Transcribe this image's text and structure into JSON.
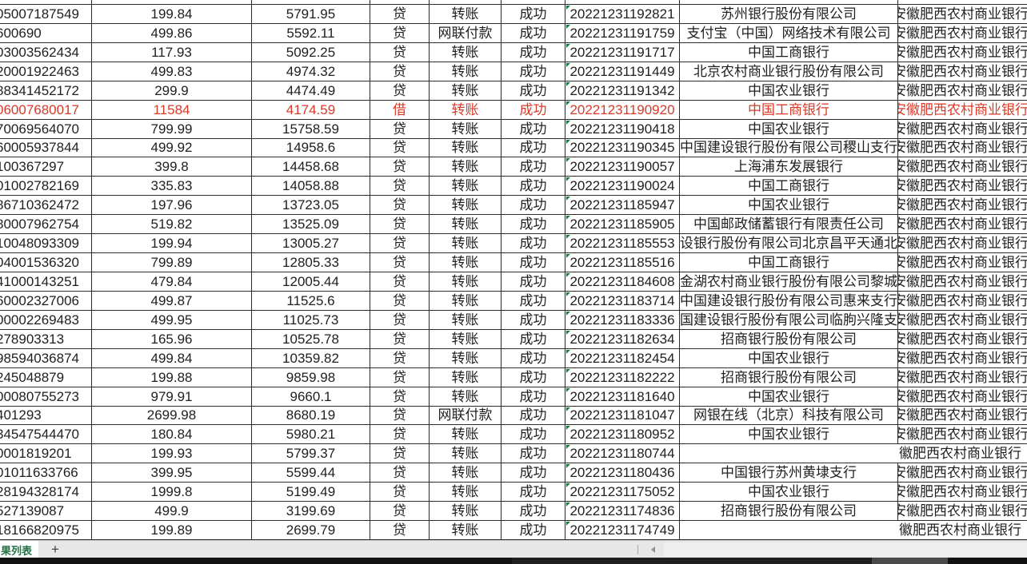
{
  "sheet_bar": {
    "active_tab": "果列表",
    "add_label": "+"
  },
  "colors": {
    "red_row_text": "#d93a28",
    "tab_green": "#217346",
    "warning_triangle_green": "#1f7a3c",
    "border": "#2b2b2b"
  },
  "table": {
    "home_bank_text": "安徽肥西农村商业银行",
    "column_keys": [
      "account",
      "amount",
      "balance",
      "debit_credit",
      "method",
      "status",
      "timestamp",
      "counterparty_bank",
      "home_bank"
    ],
    "rows": [
      {
        "account": "05007187549",
        "amount": "199.84",
        "balance": "5791.95",
        "debit_credit": "贷",
        "method": "转账",
        "status": "成功",
        "timestamp": "20221231192821",
        "counterparty_bank": "苏州银行股份有限公司",
        "red": false,
        "spill": false
      },
      {
        "account": "600690",
        "amount": "499.86",
        "balance": "5592.11",
        "debit_credit": "贷",
        "method": "网联付款",
        "status": "成功",
        "timestamp": "20221231191759",
        "counterparty_bank": "支付宝（中国）网络技术有限公司",
        "red": false,
        "spill": false
      },
      {
        "account": "03003562434",
        "amount": "117.93",
        "balance": "5092.25",
        "debit_credit": "贷",
        "method": "转账",
        "status": "成功",
        "timestamp": "20221231191717",
        "counterparty_bank": "中国工商银行",
        "red": false,
        "spill": false
      },
      {
        "account": "20001922463",
        "amount": "499.83",
        "balance": "4974.32",
        "debit_credit": "贷",
        "method": "转账",
        "status": "成功",
        "timestamp": "20221231191449",
        "counterparty_bank": "北京农村商业银行股份有限公司",
        "red": false,
        "spill": false
      },
      {
        "account": "88341452172",
        "amount": "299.9",
        "balance": "4474.49",
        "debit_credit": "贷",
        "method": "转账",
        "status": "成功",
        "timestamp": "20221231191342",
        "counterparty_bank": "中国农业银行",
        "red": false,
        "spill": false
      },
      {
        "account": "06007680017",
        "amount": "11584",
        "balance": "4174.59",
        "debit_credit": "借",
        "method": "转账",
        "status": "成功",
        "timestamp": "20221231190920",
        "counterparty_bank": "中国工商银行",
        "red": true,
        "spill": false
      },
      {
        "account": "70069564070",
        "amount": "799.99",
        "balance": "15758.59",
        "debit_credit": "贷",
        "method": "转账",
        "status": "成功",
        "timestamp": "20221231190418",
        "counterparty_bank": "中国农业银行",
        "red": false,
        "spill": false
      },
      {
        "account": "60005937844",
        "amount": "499.92",
        "balance": "14958.6",
        "debit_credit": "贷",
        "method": "转账",
        "status": "成功",
        "timestamp": "20221231190345",
        "counterparty_bank": "中国建设银行股份有限公司稷山支行",
        "red": false,
        "spill": false
      },
      {
        "account": "100367297",
        "amount": "399.8",
        "balance": "14458.68",
        "debit_credit": "贷",
        "method": "转账",
        "status": "成功",
        "timestamp": "20221231190057",
        "counterparty_bank": "上海浦东发展银行",
        "red": false,
        "spill": false
      },
      {
        "account": "01002782169",
        "amount": "335.83",
        "balance": "14058.88",
        "debit_credit": "贷",
        "method": "转账",
        "status": "成功",
        "timestamp": "20221231190024",
        "counterparty_bank": "中国工商银行",
        "red": false,
        "spill": false
      },
      {
        "account": "86710362472",
        "amount": "197.96",
        "balance": "13723.05",
        "debit_credit": "贷",
        "method": "转账",
        "status": "成功",
        "timestamp": "20221231185947",
        "counterparty_bank": "中国农业银行",
        "red": false,
        "spill": false
      },
      {
        "account": "80007962754",
        "amount": "519.82",
        "balance": "13525.09",
        "debit_credit": "贷",
        "method": "转账",
        "status": "成功",
        "timestamp": "20221231185905",
        "counterparty_bank": "中国邮政储蓄银行有限责任公司",
        "red": false,
        "spill": false
      },
      {
        "account": "10048093309",
        "amount": "199.94",
        "balance": "13005.27",
        "debit_credit": "贷",
        "method": "转账",
        "status": "成功",
        "timestamp": "20221231185553",
        "counterparty_bank": "设银行股份有限公司北京昌平天通北",
        "red": false,
        "spill": false
      },
      {
        "account": "04001536320",
        "amount": "799.89",
        "balance": "12805.33",
        "debit_credit": "贷",
        "method": "转账",
        "status": "成功",
        "timestamp": "20221231185516",
        "counterparty_bank": "中国工商银行",
        "red": false,
        "spill": false
      },
      {
        "account": "41000143251",
        "amount": "479.84",
        "balance": "12005.44",
        "debit_credit": "贷",
        "method": "转账",
        "status": "成功",
        "timestamp": "20221231184608",
        "counterparty_bank": "金湖农村商业银行股份有限公司黎城",
        "red": false,
        "spill": false
      },
      {
        "account": "60002327006",
        "amount": "499.87",
        "balance": "11525.6",
        "debit_credit": "贷",
        "method": "转账",
        "status": "成功",
        "timestamp": "20221231183714",
        "counterparty_bank": "中国建设银行股份有限公司惠来支行",
        "red": false,
        "spill": false
      },
      {
        "account": "00002269483",
        "amount": "499.95",
        "balance": "11025.73",
        "debit_credit": "贷",
        "method": "转账",
        "status": "成功",
        "timestamp": "20221231183336",
        "counterparty_bank": "国建设银行股份有限公司临朐兴隆支",
        "red": false,
        "spill": false
      },
      {
        "account": "278903313",
        "amount": "165.96",
        "balance": "10525.78",
        "debit_credit": "贷",
        "method": "转账",
        "status": "成功",
        "timestamp": "20221231182634",
        "counterparty_bank": "招商银行股份有限公司",
        "red": false,
        "spill": false
      },
      {
        "account": "98594036874",
        "amount": "499.84",
        "balance": "10359.82",
        "debit_credit": "贷",
        "method": "转账",
        "status": "成功",
        "timestamp": "20221231182454",
        "counterparty_bank": "中国农业银行",
        "red": false,
        "spill": false
      },
      {
        "account": "245048879",
        "amount": "199.88",
        "balance": "9859.98",
        "debit_credit": "贷",
        "method": "转账",
        "status": "成功",
        "timestamp": "20221231182222",
        "counterparty_bank": "招商银行股份有限公司",
        "red": false,
        "spill": false
      },
      {
        "account": "00080755273",
        "amount": "979.91",
        "balance": "9660.1",
        "debit_credit": "贷",
        "method": "转账",
        "status": "成功",
        "timestamp": "20221231181640",
        "counterparty_bank": "中国农业银行",
        "red": false,
        "spill": false
      },
      {
        "account": "401293",
        "amount": "2699.98",
        "balance": "8680.19",
        "debit_credit": "贷",
        "method": "网联付款",
        "status": "成功",
        "timestamp": "20221231181047",
        "counterparty_bank": "网银在线（北京）科技有限公司",
        "red": false,
        "spill": false
      },
      {
        "account": "34547544470",
        "amount": "180.84",
        "balance": "5980.21",
        "debit_credit": "贷",
        "method": "转账",
        "status": "成功",
        "timestamp": "20221231180952",
        "counterparty_bank": "中国农业银行",
        "red": false,
        "spill": false
      },
      {
        "account": "0001819201",
        "amount": "199.93",
        "balance": "5799.37",
        "debit_credit": "贷",
        "method": "转账",
        "status": "成功",
        "timestamp": "20221231180744",
        "counterparty_bank": "",
        "red": false,
        "spill": true
      },
      {
        "account": "01011633766",
        "amount": "399.95",
        "balance": "5599.44",
        "debit_credit": "贷",
        "method": "转账",
        "status": "成功",
        "timestamp": "20221231180436",
        "counterparty_bank": "中国银行苏州黄埭支行",
        "red": false,
        "spill": false
      },
      {
        "account": "28194328174",
        "amount": "1999.8",
        "balance": "5199.49",
        "debit_credit": "贷",
        "method": "转账",
        "status": "成功",
        "timestamp": "20221231175052",
        "counterparty_bank": "中国农业银行",
        "red": false,
        "spill": false
      },
      {
        "account": "527139087",
        "amount": "499.9",
        "balance": "3199.69",
        "debit_credit": "贷",
        "method": "转账",
        "status": "成功",
        "timestamp": "20221231174836",
        "counterparty_bank": "招商银行股份有限公司",
        "red": false,
        "spill": false
      },
      {
        "account": "18166820975",
        "amount": "199.89",
        "balance": "2699.79",
        "debit_credit": "贷",
        "method": "转账",
        "status": "成功",
        "timestamp": "20221231174749",
        "counterparty_bank": "",
        "red": false,
        "spill": true
      }
    ]
  }
}
